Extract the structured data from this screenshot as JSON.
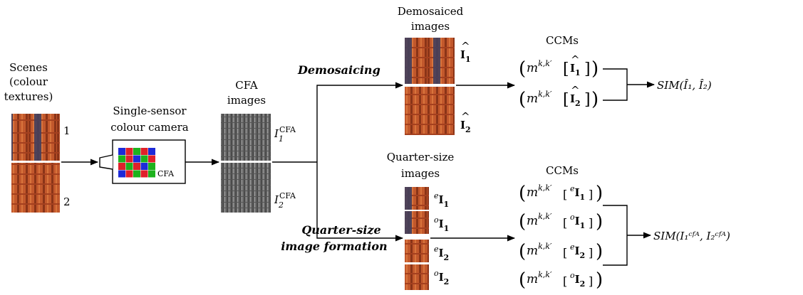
{
  "scenes": {
    "title_lines": [
      "Scenes",
      "(colour",
      "textures)"
    ],
    "label_1": "1",
    "label_2": "2"
  },
  "camera": {
    "title_lines": [
      "Single-sensor",
      "colour camera"
    ],
    "cfa_label": "CFA",
    "pixel_colors": [
      "#e0202a",
      "#1db21d",
      "#1d2ad8"
    ]
  },
  "cfa_images": {
    "title_lines": [
      "CFA",
      "images"
    ],
    "label_1": {
      "base": "I",
      "sub": "1",
      "sup": "CFA"
    },
    "label_2": {
      "base": "I",
      "sub": "2",
      "sup": "CFA"
    }
  },
  "demosaicing": {
    "process_label": "Demosaicing",
    "title_lines": [
      "Demosaiced",
      "images"
    ],
    "label_1": {
      "accent": "^",
      "base": "I",
      "sub": "1"
    },
    "label_2": {
      "accent": "^",
      "base": "I",
      "sub": "2"
    }
  },
  "quarter": {
    "process_label_lines": [
      "Quarter-size",
      "image formation"
    ],
    "title_lines": [
      "Quarter-size",
      "images"
    ],
    "labels": [
      {
        "pre": "e",
        "base": "I",
        "sub": "1"
      },
      {
        "pre": "o",
        "base": "I",
        "sub": "1"
      },
      {
        "pre": "e",
        "base": "I",
        "sub": "2"
      },
      {
        "pre": "o",
        "base": "I",
        "sub": "2"
      }
    ]
  },
  "ccm_top": {
    "title": "CCMs",
    "terms": [
      {
        "m": "m",
        "sup": "k,k′",
        "arg_accent": "^",
        "arg": "I",
        "sub": "1"
      },
      {
        "m": "m",
        "sup": "k,k′",
        "arg_accent": "^",
        "arg": "I",
        "sub": "2"
      }
    ]
  },
  "ccm_bottom": {
    "title": "CCMs",
    "terms": [
      {
        "m": "m",
        "sup": "k,k′",
        "pre": "e",
        "arg": "I",
        "sub": "1"
      },
      {
        "m": "m",
        "sup": "k,k′",
        "pre": "o",
        "arg": "I",
        "sub": "1"
      },
      {
        "m": "m",
        "sup": "k,k′",
        "pre": "e",
        "arg": "I",
        "sub": "2"
      },
      {
        "m": "m",
        "sup": "k,k′",
        "pre": "o",
        "arg": "I",
        "sub": "2"
      }
    ]
  },
  "results": {
    "top": "SIM(Î₁, Î₂)",
    "bottom": "SIM(I₁ᶜᶠᴬ, I₂ᶜᶠᴬ)"
  },
  "colors": {
    "texture_orange": "#c0522a",
    "texture_dark": "#3a3e5e",
    "cfa_gray": "#6a6a6a"
  }
}
